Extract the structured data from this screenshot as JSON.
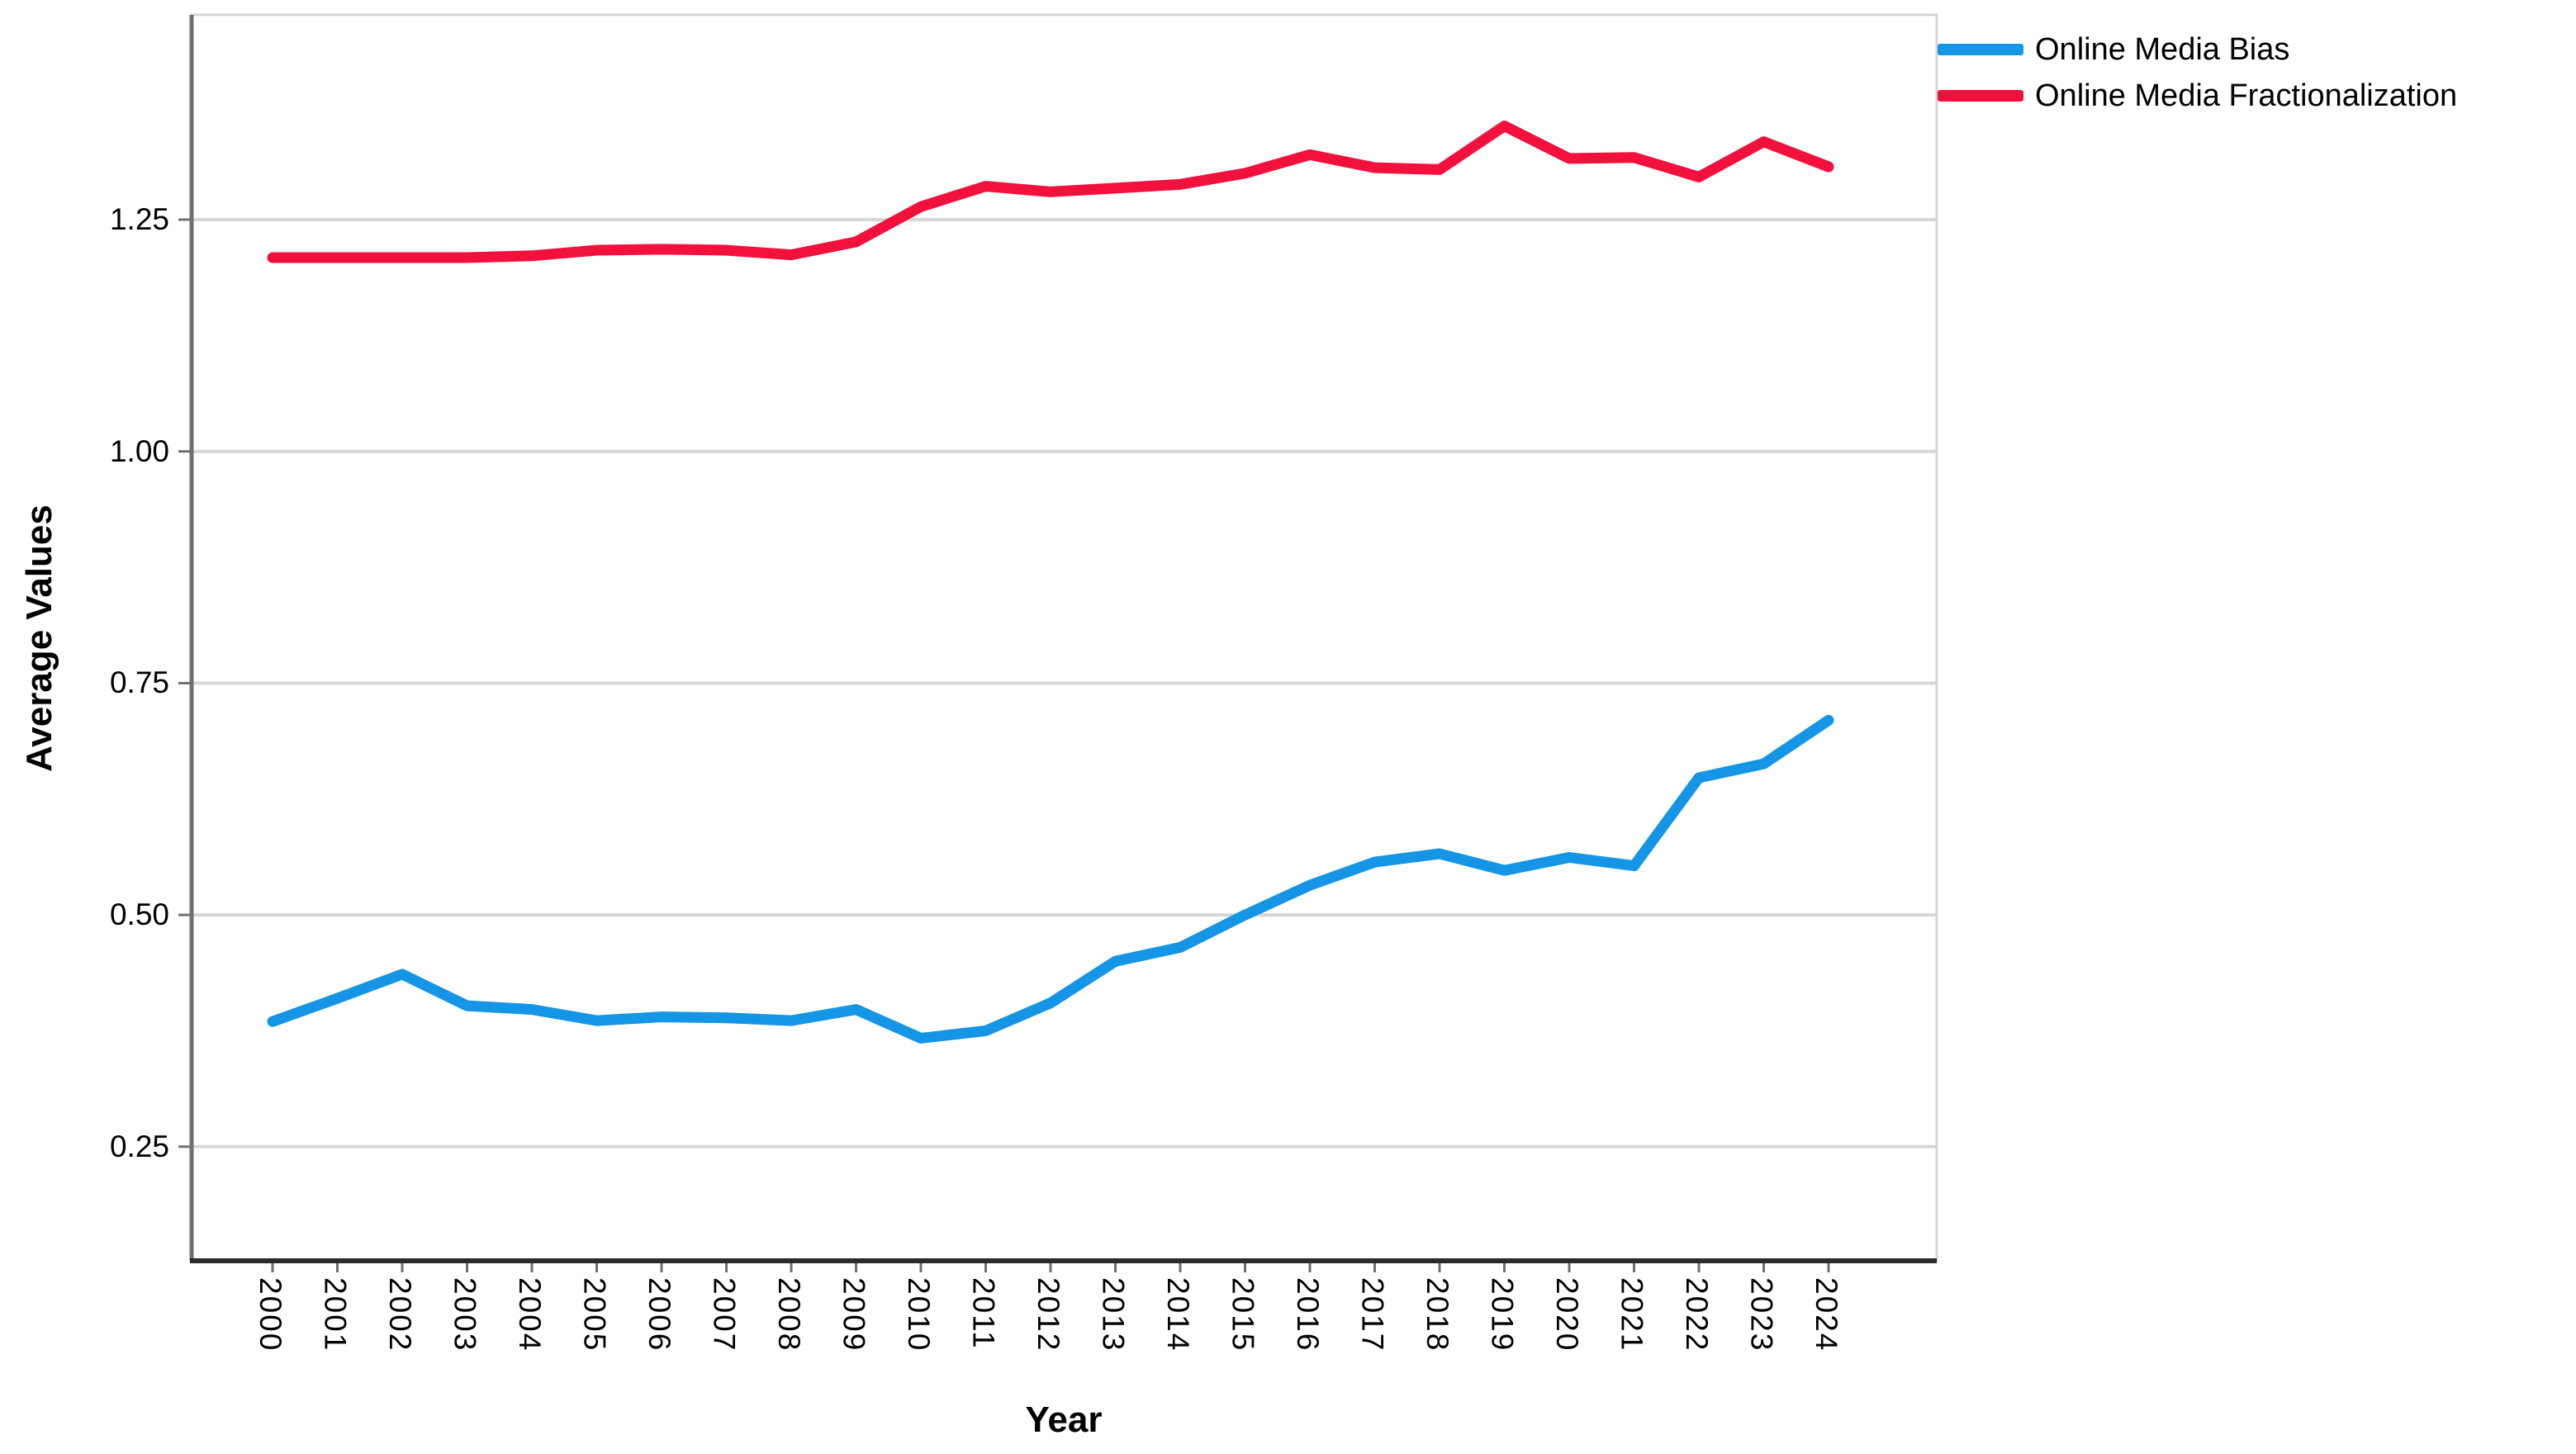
{
  "chart_data": {
    "type": "line",
    "xlabel": "Year",
    "ylabel": "Average Values",
    "categories": [
      "2000",
      "2001",
      "2002",
      "2003",
      "2004",
      "2005",
      "2006",
      "2007",
      "2008",
      "2009",
      "2010",
      "2011",
      "2012",
      "2013",
      "2014",
      "2015",
      "2016",
      "2017",
      "2018",
      "2019",
      "2020",
      "2021",
      "2022",
      "2023",
      "2024"
    ],
    "series": [
      {
        "name": "Online Media Bias",
        "color": "#1495E5",
        "values": [
          0.385,
          0.41,
          0.436,
          0.402,
          0.398,
          0.386,
          0.39,
          0.389,
          0.386,
          0.398,
          0.367,
          0.375,
          0.405,
          0.45,
          0.465,
          0.5,
          0.532,
          0.557,
          0.566,
          0.548,
          0.562,
          0.553,
          0.648,
          0.663,
          0.71
        ]
      },
      {
        "name": "Online Media Fractionalization",
        "color": "#F2113D",
        "values": [
          1.209,
          1.209,
          1.209,
          1.209,
          1.211,
          1.217,
          1.218,
          1.217,
          1.212,
          1.226,
          1.264,
          1.286,
          1.28,
          1.284,
          1.288,
          1.3,
          1.32,
          1.306,
          1.304,
          1.351,
          1.316,
          1.317,
          1.296,
          1.334,
          1.307
        ]
      }
    ],
    "y_ticks": [
      1.25,
      1.0,
      0.75,
      0.5,
      0.25
    ],
    "y_tick_labels": [
      "1.25",
      "1.00",
      "0.75",
      "0.50",
      "0.25"
    ],
    "ylim": [
      0.127,
      1.471
    ],
    "grid": "horizontal",
    "legend_position": "top-right"
  },
  "colors": {
    "gridline": "#d6d6d6",
    "frame": "#d6d6d6",
    "y_axis_line": "#6f6f6f",
    "x_axis_line": "#2b2b2b",
    "tick_mark": "#6f6f6f",
    "background": "#ffffff",
    "text": "#000000"
  }
}
